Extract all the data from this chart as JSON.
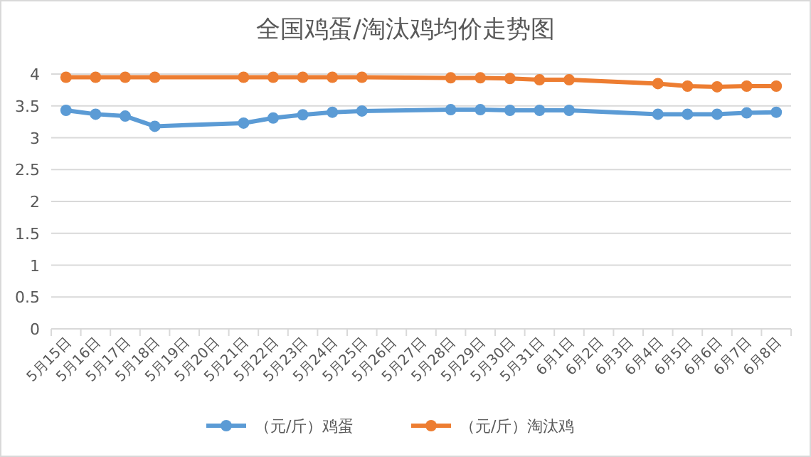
{
  "chart_data": {
    "type": "line",
    "title": "全国鸡蛋/淘汰鸡均价走势图",
    "categories": [
      "5月15日",
      "5月16日",
      "5月17日",
      "5月18日",
      "5月19日",
      "5月20日",
      "5月21日",
      "5月22日",
      "5月23日",
      "5月24日",
      "5月25日",
      "5月26日",
      "5月27日",
      "5月28日",
      "5月29日",
      "5月30日",
      "5月31日",
      "6月1日",
      "6月2日",
      "6月3日",
      "6月4日",
      "6月5日",
      "6月6日",
      "6月7日",
      "6月8日"
    ],
    "series": [
      {
        "name": "（元/斤）鸡蛋",
        "color": "#5b9bd5",
        "values": [
          3.43,
          3.37,
          3.34,
          3.18,
          null,
          null,
          3.23,
          3.31,
          3.36,
          3.4,
          3.42,
          null,
          null,
          3.44,
          3.44,
          3.43,
          3.43,
          3.43,
          null,
          null,
          3.37,
          3.37,
          3.37,
          3.39,
          3.4
        ]
      },
      {
        "name": "（元/斤）淘汰鸡",
        "color": "#ed7d31",
        "values": [
          3.95,
          3.95,
          3.95,
          3.95,
          null,
          null,
          3.95,
          3.95,
          3.95,
          3.95,
          3.95,
          null,
          null,
          3.94,
          3.94,
          3.93,
          3.91,
          3.91,
          null,
          null,
          3.85,
          3.81,
          3.8,
          3.81,
          3.81
        ]
      }
    ],
    "ylim": [
      0,
      4
    ],
    "yticks": [
      0,
      0.5,
      1,
      1.5,
      2,
      2.5,
      3,
      3.5,
      4
    ],
    "grid": "y",
    "legend": "bottom",
    "marker": "circle",
    "line_style": "solid"
  }
}
